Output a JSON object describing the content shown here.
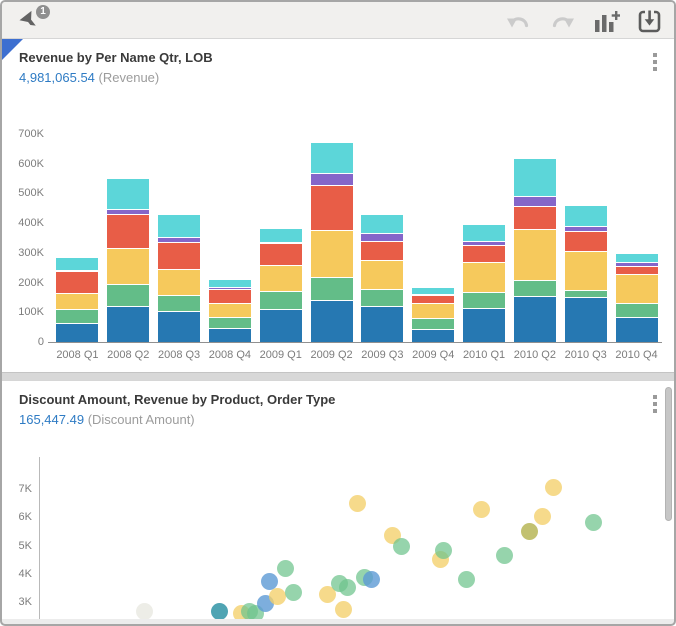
{
  "toolbar": {
    "filter_badge": "1",
    "icons": {
      "filter": "filter-funnel-icon",
      "undo": "undo-arrow-icon",
      "redo": "redo-arrow-icon",
      "add_chart": "bar-chart-plus-icon",
      "save": "save-download-icon"
    },
    "colors": {
      "active_icon": "#646464",
      "disabled_icon": "#cbcbcb"
    }
  },
  "cards": [
    {
      "title": "Revenue by Per Name Qtr, LOB",
      "value": "4,981,065.54",
      "value_label": "(Revenue)",
      "selected": true
    },
    {
      "title": "Discount Amount, Revenue by Product, Order Type",
      "value": "165,447.49",
      "value_label": "(Discount Amount)",
      "selected": false
    }
  ],
  "accent": {
    "value_blue": "#2e7bc4",
    "selection_triangle": "#3d6fd0"
  },
  "chart_data": [
    {
      "type": "bar",
      "stacked": true,
      "title": "Revenue by Per Name Qtr, LOB",
      "categories": [
        "2008 Q1",
        "2008 Q2",
        "2008 Q3",
        "2008 Q4",
        "2009 Q1",
        "2009 Q2",
        "2009 Q3",
        "2009 Q4",
        "2010 Q1",
        "2010 Q2",
        "2010 Q3",
        "2010 Q4"
      ],
      "values_unit": "thousands",
      "series": [
        {
          "name": "lob-segment-1",
          "color": "#2678b2",
          "values": [
            63,
            120,
            103,
            48,
            110,
            140,
            120,
            45,
            115,
            155,
            150,
            85
          ]
        },
        {
          "name": "lob-segment-2",
          "color": "#63bd88",
          "values": [
            47,
            75,
            55,
            37,
            62,
            80,
            58,
            35,
            55,
            55,
            25,
            46
          ]
        },
        {
          "name": "lob-segment-3",
          "color": "#f6c95c",
          "values": [
            55,
            123,
            87,
            45,
            86,
            158,
            98,
            50,
            100,
            170,
            130,
            99
          ]
        },
        {
          "name": "lob-segment-4",
          "color": "#e85d47",
          "values": [
            75,
            112,
            93,
            50,
            74,
            152,
            65,
            30,
            55,
            78,
            70,
            26
          ]
        },
        {
          "name": "lob-segment-5",
          "color": "#8566c9",
          "values": [
            4,
            18,
            14,
            5,
            6,
            38,
            25,
            3,
            16,
            32,
            15,
            15
          ]
        },
        {
          "name": "lob-segment-6",
          "color": "#5cd6d9",
          "values": [
            43,
            104,
            78,
            27,
            47,
            104,
            64,
            22,
            55,
            130,
            70,
            28
          ]
        }
      ],
      "yticks": [
        "0",
        "100K",
        "200K",
        "300K",
        "400K",
        "500K",
        "600K",
        "700K"
      ],
      "ylim": [
        0,
        700
      ],
      "grid": false,
      "legend": "none"
    },
    {
      "type": "scatter",
      "title": "Discount Amount, Revenue by Product, Order Type",
      "yticks": [
        "3K",
        "4K",
        "5K",
        "6K",
        "7K"
      ],
      "ylim_visible": [
        2.3,
        7.6
      ],
      "xaxis_labels_visible": false,
      "grid": false,
      "colors": {
        "green": "rgba(110,196,140,0.72)",
        "yellow": "rgba(243,208,106,0.78)",
        "blue": "rgba(92,154,212,0.80)",
        "teal": "rgba(48,148,166,0.85)",
        "olive": "rgba(186,184,92,0.88)",
        "faint": "rgba(214,214,202,0.45)"
      },
      "points": [
        {
          "x": 0.17,
          "y": 2.68,
          "c": "faint"
        },
        {
          "x": 0.291,
          "y": 2.65,
          "c": "teal"
        },
        {
          "x": 0.326,
          "y": 2.58,
          "c": "yellow"
        },
        {
          "x": 0.34,
          "y": 2.66,
          "c": "green"
        },
        {
          "x": 0.349,
          "y": 2.58,
          "c": "green"
        },
        {
          "x": 0.366,
          "y": 2.93,
          "c": "blue"
        },
        {
          "x": 0.371,
          "y": 3.71,
          "c": "blue"
        },
        {
          "x": 0.385,
          "y": 3.18,
          "c": "yellow"
        },
        {
          "x": 0.398,
          "y": 4.17,
          "c": "green"
        },
        {
          "x": 0.411,
          "y": 3.35,
          "c": "green"
        },
        {
          "x": 0.466,
          "y": 3.28,
          "c": "yellow"
        },
        {
          "x": 0.485,
          "y": 3.64,
          "c": "green"
        },
        {
          "x": 0.498,
          "y": 3.5,
          "c": "green"
        },
        {
          "x": 0.491,
          "y": 2.72,
          "c": "yellow"
        },
        {
          "x": 0.514,
          "y": 6.47,
          "c": "yellow"
        },
        {
          "x": 0.525,
          "y": 3.88,
          "c": "green"
        },
        {
          "x": 0.536,
          "y": 3.81,
          "c": "blue"
        },
        {
          "x": 0.57,
          "y": 5.34,
          "c": "yellow"
        },
        {
          "x": 0.584,
          "y": 4.98,
          "c": "green"
        },
        {
          "x": 0.648,
          "y": 4.49,
          "c": "yellow"
        },
        {
          "x": 0.652,
          "y": 4.84,
          "c": "green"
        },
        {
          "x": 0.689,
          "y": 3.78,
          "c": "green"
        },
        {
          "x": 0.713,
          "y": 6.26,
          "c": "yellow"
        },
        {
          "x": 0.751,
          "y": 4.66,
          "c": "green"
        },
        {
          "x": 0.791,
          "y": 5.51,
          "c": "olive"
        },
        {
          "x": 0.812,
          "y": 6.04,
          "c": "yellow"
        },
        {
          "x": 0.83,
          "y": 7.07,
          "c": "yellow"
        },
        {
          "x": 0.894,
          "y": 5.83,
          "c": "green"
        }
      ]
    }
  ]
}
